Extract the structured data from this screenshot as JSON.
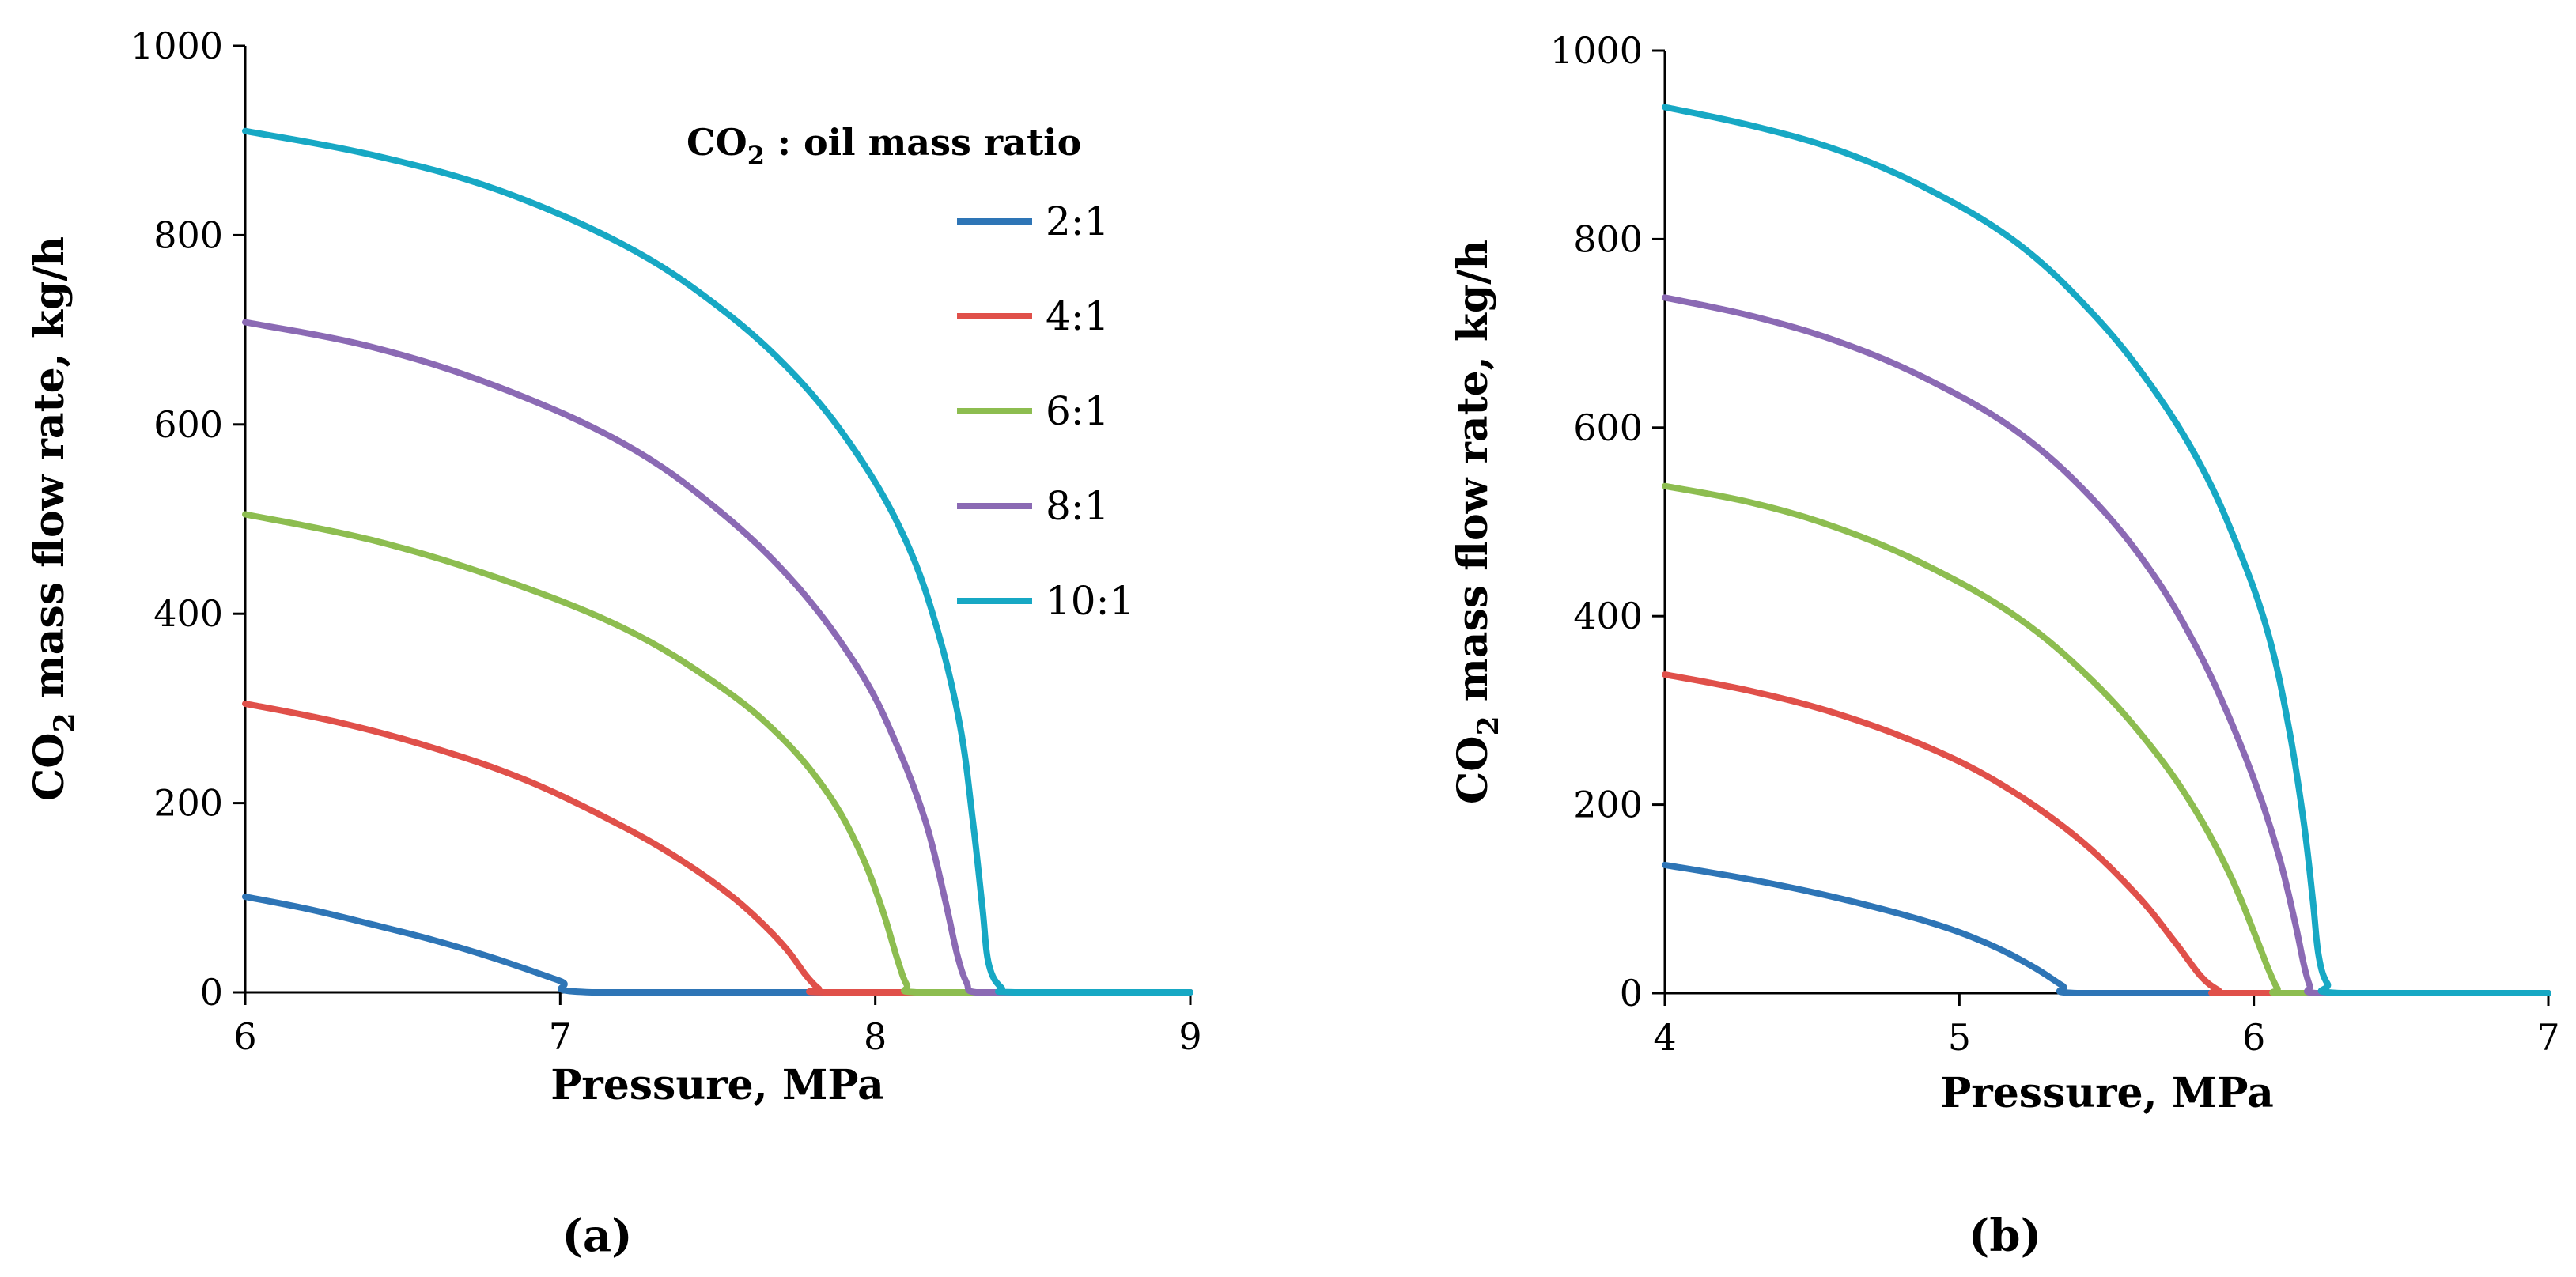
{
  "chart_data": [
    {
      "type": "line",
      "panel_label": "(a)",
      "xlabel": "Pressure, MPa",
      "ylabel_main": "CO",
      "ylabel_sub": "2",
      "ylabel_rest": " mass flow rate, kg/h",
      "xlim": [
        6,
        9
      ],
      "ylim": [
        0,
        1000
      ],
      "xticks": [
        "6",
        "7",
        "8",
        "9"
      ],
      "yticks": [
        "0",
        "200",
        "400",
        "600",
        "800",
        "1000"
      ],
      "legend": {
        "title_main": "CO",
        "title_sub": "2",
        "title_rest": " : oil mass ratio",
        "placement": "top-right"
      },
      "series": [
        {
          "name": "2:1",
          "color": "#2E75B6",
          "x": [
            6.0,
            6.2,
            6.4,
            6.6,
            6.8,
            7.0,
            7.1,
            8.0,
            9.0
          ],
          "y": [
            101,
            88,
            72,
            55,
            35,
            12,
            0,
            0,
            0
          ]
        },
        {
          "name": "4:1",
          "color": "#E0504A",
          "x": [
            6.0,
            6.3,
            6.6,
            6.9,
            7.2,
            7.4,
            7.55,
            7.65,
            7.72,
            7.78,
            7.82,
            7.85,
            8.5,
            9.0
          ],
          "y": [
            305,
            285,
            258,
            223,
            175,
            136,
            100,
            70,
            45,
            18,
            4,
            0,
            0,
            0
          ]
        },
        {
          "name": "6:1",
          "color": "#8DBD50",
          "x": [
            6.0,
            6.4,
            6.8,
            7.2,
            7.5,
            7.7,
            7.85,
            7.95,
            8.02,
            8.07,
            8.1,
            8.13,
            8.5,
            9.0
          ],
          "y": [
            505,
            478,
            438,
            385,
            325,
            270,
            210,
            150,
            90,
            35,
            8,
            0,
            0,
            0
          ]
        },
        {
          "name": "8:1",
          "color": "#8B6AB4",
          "x": [
            6.0,
            6.4,
            6.8,
            7.2,
            7.5,
            7.75,
            7.95,
            8.07,
            8.16,
            8.22,
            8.26,
            8.29,
            8.32,
            8.5,
            9.0
          ],
          "y": [
            708,
            682,
            640,
            580,
            510,
            430,
            340,
            260,
            180,
            100,
            40,
            10,
            0,
            0,
            0
          ]
        },
        {
          "name": "10:1",
          "color": "#17A8C4",
          "x": [
            6.0,
            6.4,
            6.8,
            7.2,
            7.5,
            7.75,
            7.95,
            8.1,
            8.2,
            8.27,
            8.31,
            8.34,
            8.36,
            8.4,
            8.45,
            9.0
          ],
          "y": [
            910,
            885,
            848,
            790,
            725,
            650,
            565,
            475,
            380,
            280,
            180,
            90,
            30,
            5,
            0,
            0
          ]
        }
      ]
    },
    {
      "type": "line",
      "panel_label": "(b)",
      "xlabel": "Pressure, MPa",
      "ylabel_main": "CO",
      "ylabel_sub": "2",
      "ylabel_rest": " mass flow rate, kg/h",
      "xlim": [
        4,
        7
      ],
      "ylim": [
        0,
        1000
      ],
      "xticks": [
        "4",
        "5",
        "6",
        "7"
      ],
      "yticks": [
        "0",
        "200",
        "400",
        "600",
        "800",
        "1000"
      ],
      "series": [
        {
          "name": "2:1",
          "color": "#2E75B6",
          "x": [
            4.0,
            4.3,
            4.6,
            4.9,
            5.1,
            5.25,
            5.35,
            5.4,
            6.0,
            7.0
          ],
          "y": [
            136,
            120,
            100,
            75,
            52,
            28,
            8,
            0,
            0,
            0
          ]
        },
        {
          "name": "4:1",
          "color": "#E0504A",
          "x": [
            4.0,
            4.3,
            4.6,
            4.9,
            5.15,
            5.4,
            5.6,
            5.73,
            5.82,
            5.88,
            5.91,
            6.5,
            7.0
          ],
          "y": [
            338,
            320,
            295,
            260,
            220,
            165,
            105,
            55,
            18,
            3,
            0,
            0,
            0
          ]
        },
        {
          "name": "6:1",
          "color": "#8DBD50",
          "x": [
            4.0,
            4.3,
            4.6,
            4.9,
            5.2,
            5.45,
            5.65,
            5.8,
            5.92,
            6.0,
            6.05,
            6.08,
            6.1,
            6.5,
            7.0
          ],
          "y": [
            538,
            520,
            492,
            452,
            398,
            332,
            262,
            195,
            125,
            65,
            25,
            5,
            0,
            0,
            0
          ]
        },
        {
          "name": "8:1",
          "color": "#8B6AB4",
          "x": [
            4.0,
            4.3,
            4.6,
            4.9,
            5.2,
            5.45,
            5.65,
            5.8,
            5.92,
            6.02,
            6.09,
            6.14,
            6.17,
            6.19,
            6.21,
            6.5,
            7.0
          ],
          "y": [
            738,
            718,
            690,
            650,
            595,
            525,
            448,
            370,
            290,
            210,
            140,
            75,
            30,
            8,
            0,
            0,
            0
          ]
        },
        {
          "name": "10:1",
          "color": "#17A8C4",
          "x": [
            4.0,
            4.3,
            4.6,
            4.9,
            5.2,
            5.45,
            5.65,
            5.82,
            5.95,
            6.05,
            6.12,
            6.17,
            6.2,
            6.22,
            6.25,
            6.3,
            7.0
          ],
          "y": [
            940,
            920,
            893,
            852,
            795,
            722,
            645,
            560,
            470,
            380,
            280,
            180,
            100,
            40,
            10,
            0,
            0
          ]
        }
      ]
    }
  ]
}
